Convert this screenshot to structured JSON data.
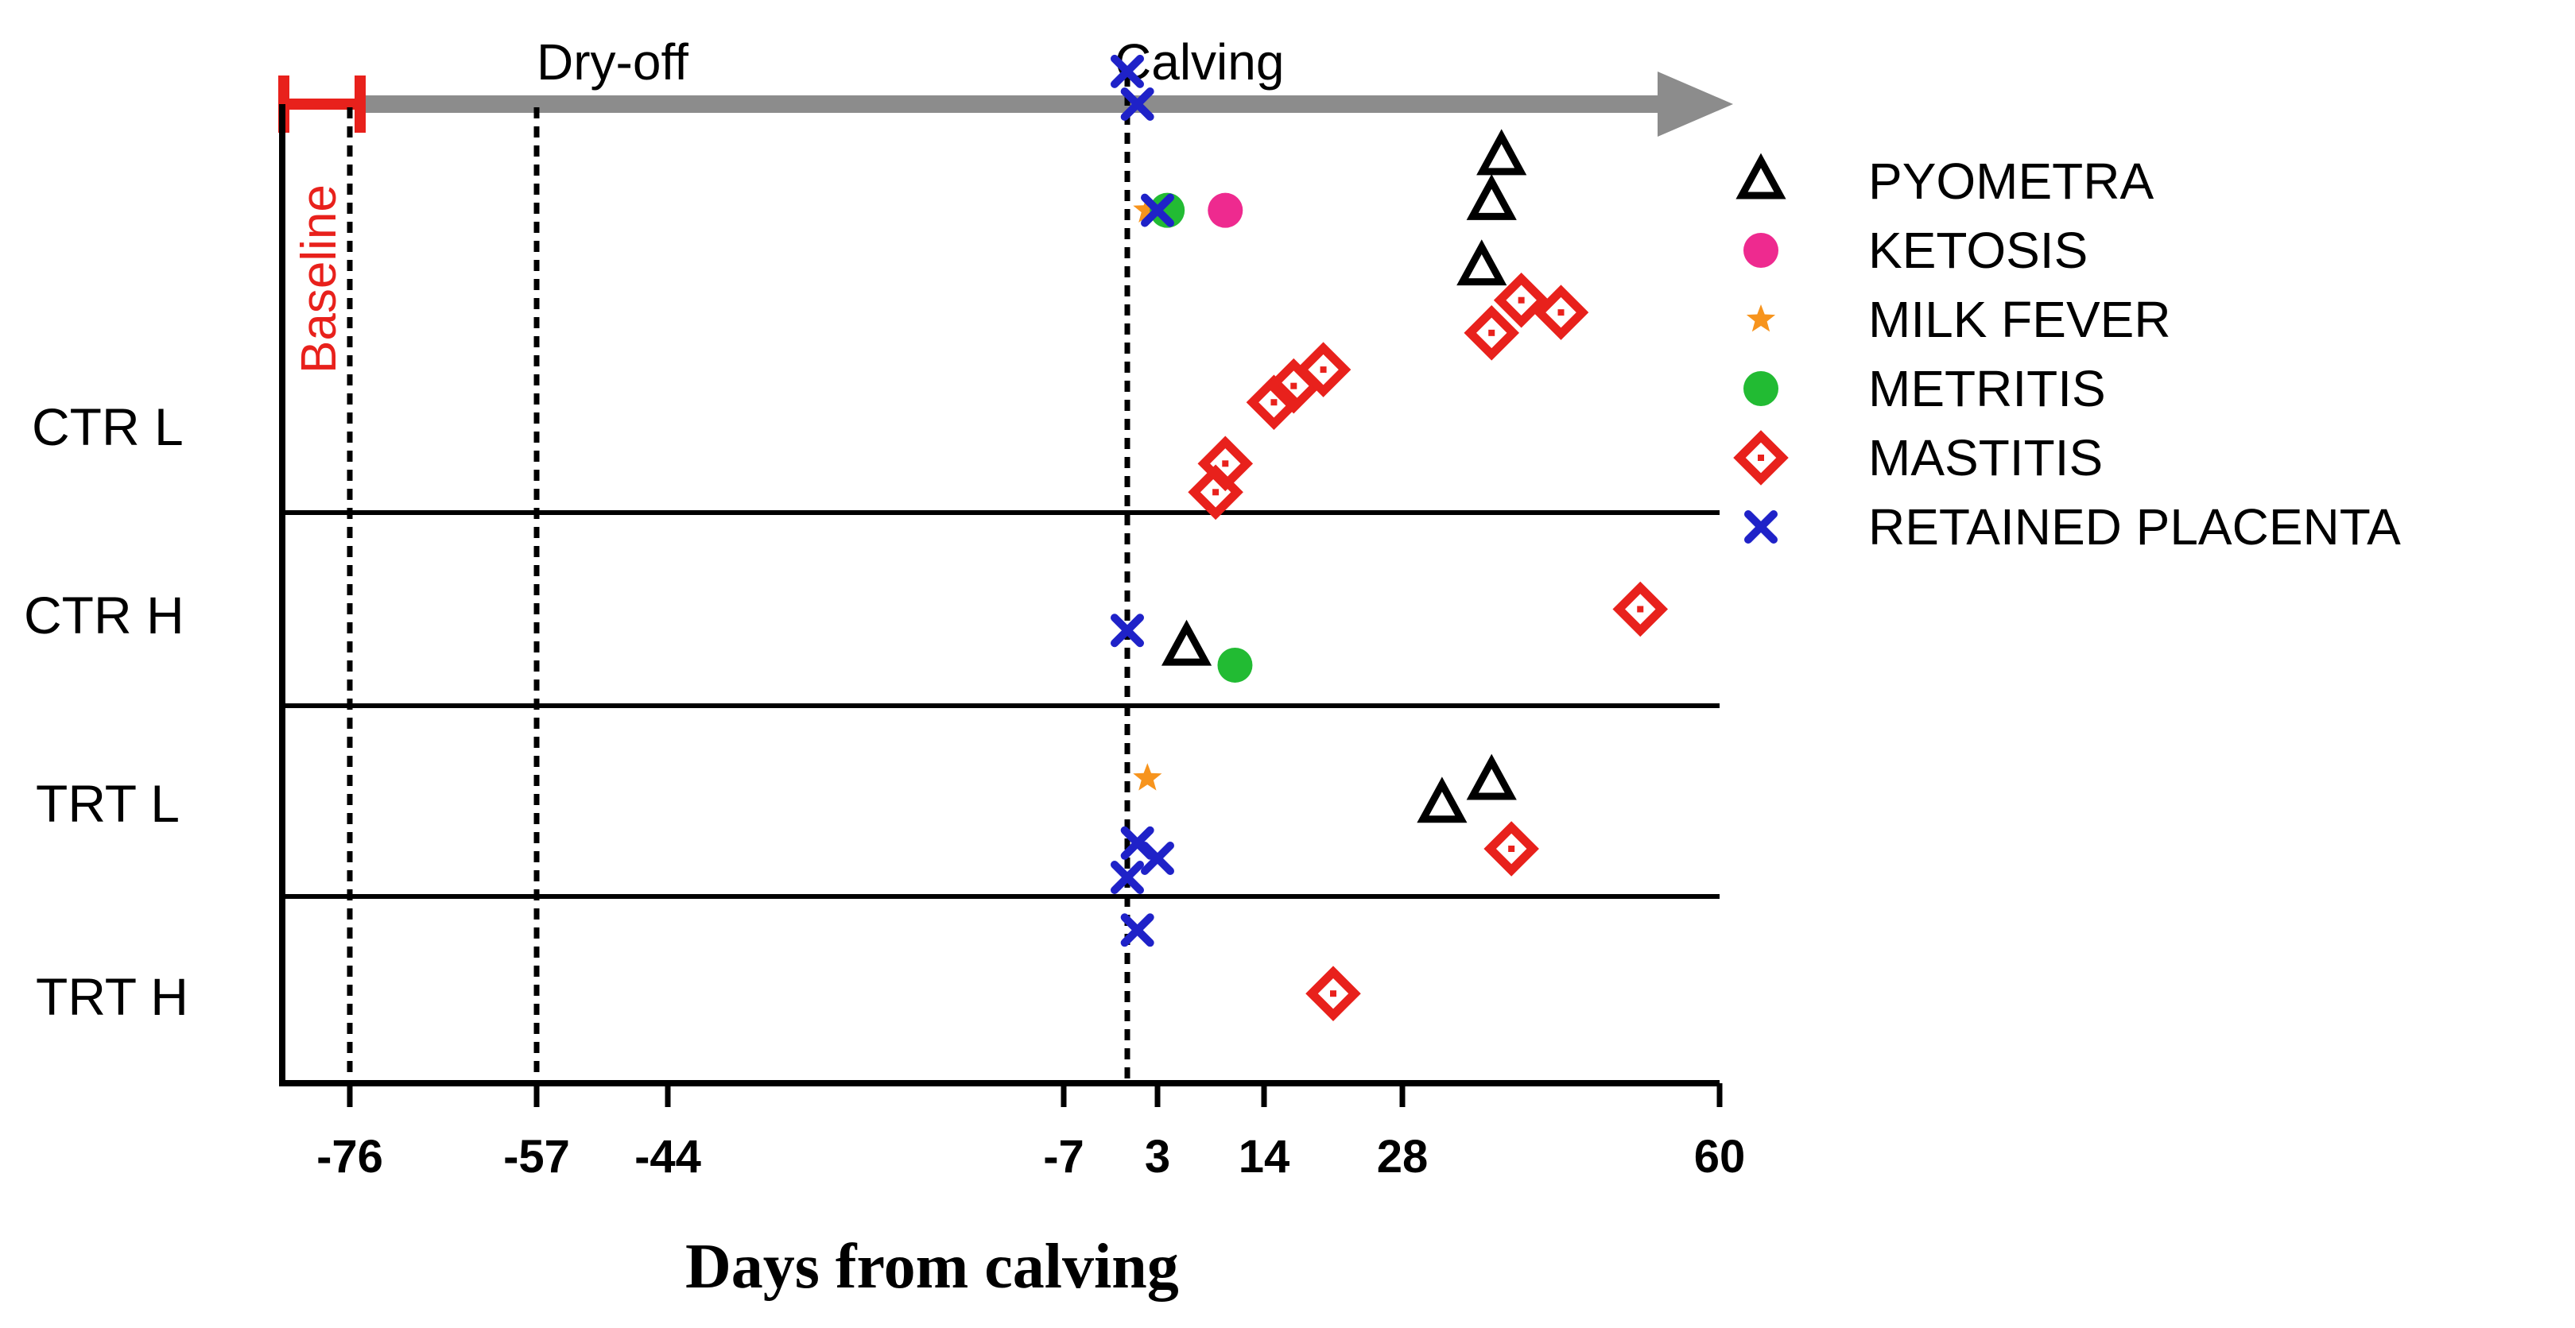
{
  "chart_data": {
    "type": "scatter",
    "title": "",
    "xlabel": "Days from calving",
    "ylabel": "",
    "x_ticks": [
      -76,
      -57,
      -44,
      -7,
      3,
      14,
      28,
      60
    ],
    "xlim": [
      -90,
      60
    ],
    "groups": [
      "CTR L",
      "CTR H",
      "TRT L",
      "TRT H"
    ],
    "annotations": {
      "baseline": "Baseline",
      "dry_off": {
        "label": "Dry-off",
        "day": -57
      },
      "calving": {
        "label": "Calving",
        "day": 0
      },
      "baseline_day": -76
    },
    "colors": {
      "pyometra": "#000000",
      "ketosis": "#ee2a8f",
      "milk_fever": "#f7941d",
      "metritis": "#22bb33",
      "mastitis": "#e8211c",
      "retained_placenta": "#1f22c8",
      "baseline": "#e8211c",
      "timeline_arrow": "#8c8c8c"
    },
    "legend": [
      {
        "key": "pyometra",
        "label": "PYOMETRA",
        "marker": "triangle"
      },
      {
        "key": "ketosis",
        "label": "KETOSIS",
        "marker": "circle"
      },
      {
        "key": "milk_fever",
        "label": "MILK FEVER",
        "marker": "star"
      },
      {
        "key": "metritis",
        "label": "METRITIS",
        "marker": "circle"
      },
      {
        "key": "mastitis",
        "label": "MASTITIS",
        "marker": "diamond"
      },
      {
        "key": "retained_placenta",
        "label": "RETAINED PLACENTA",
        "marker": "x"
      }
    ],
    "series": [
      {
        "name": "PYOMETRA",
        "key": "pyometra",
        "marker": "triangle",
        "points": [
          {
            "group": "CTR L",
            "day": 38,
            "level": 0.87
          },
          {
            "group": "CTR L",
            "day": 37,
            "level": 0.76
          },
          {
            "group": "CTR L",
            "day": 36,
            "level": 0.6
          },
          {
            "group": "CTR H",
            "day": 6,
            "level": 0.3
          },
          {
            "group": "TRT L",
            "day": 37,
            "level": 0.6
          },
          {
            "group": "TRT L",
            "day": 32,
            "level": 0.48
          }
        ]
      },
      {
        "name": "KETOSIS",
        "key": "ketosis",
        "marker": "circle",
        "points": [
          {
            "group": "CTR L",
            "day": 10,
            "level": 0.74
          }
        ]
      },
      {
        "name": "MILK FEVER",
        "key": "milk_fever",
        "marker": "star",
        "points": [
          {
            "group": "CTR L",
            "day": 2,
            "level": 0.74
          },
          {
            "group": "TRT L",
            "day": 2,
            "level": 0.62
          }
        ]
      },
      {
        "name": "METRITIS",
        "key": "metritis",
        "marker": "circle",
        "points": [
          {
            "group": "CTR L",
            "day": 4,
            "level": 0.74
          },
          {
            "group": "CTR H",
            "day": 11,
            "level": 0.21
          }
        ]
      },
      {
        "name": "MASTITIS",
        "key": "mastitis",
        "marker": "diamond",
        "points": [
          {
            "group": "CTR L",
            "day": 9,
            "level": 0.05
          },
          {
            "group": "CTR L",
            "day": 10,
            "level": 0.12
          },
          {
            "group": "CTR L",
            "day": 15,
            "level": 0.27
          },
          {
            "group": "CTR L",
            "day": 17,
            "level": 0.31
          },
          {
            "group": "CTR L",
            "day": 20,
            "level": 0.35
          },
          {
            "group": "CTR L",
            "day": 37,
            "level": 0.44
          },
          {
            "group": "CTR L",
            "day": 40,
            "level": 0.52
          },
          {
            "group": "CTR L",
            "day": 44,
            "level": 0.49
          },
          {
            "group": "CTR H",
            "day": 52,
            "level": 0.5
          },
          {
            "group": "TRT L",
            "day": 39,
            "level": 0.25
          },
          {
            "group": "TRT H",
            "day": 21,
            "level": 0.48
          }
        ]
      },
      {
        "name": "RETAINED PLACENTA",
        "key": "retained_placenta",
        "marker": "x",
        "points": [
          {
            "group": "CTR L",
            "day": 0,
            "level": 1.08
          },
          {
            "group": "CTR L",
            "day": 1,
            "level": 1.0
          },
          {
            "group": "CTR L",
            "day": 3,
            "level": 0.74
          },
          {
            "group": "CTR H",
            "day": 0,
            "level": 0.39
          },
          {
            "group": "TRT L",
            "day": 1,
            "level": 0.28
          },
          {
            "group": "TRT L",
            "day": 3,
            "level": 0.2
          },
          {
            "group": "TRT L",
            "day": 0,
            "level": 0.1
          },
          {
            "group": "TRT H",
            "day": 1,
            "level": 0.82
          }
        ]
      }
    ]
  }
}
